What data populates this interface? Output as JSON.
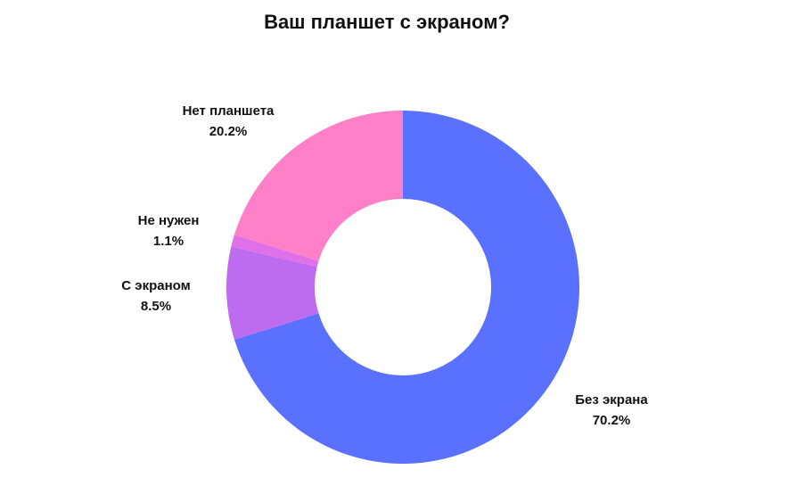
{
  "chart_data": {
    "type": "pie",
    "title": "Ваш планшет с экраном?",
    "series": [
      {
        "name": "Без экрана",
        "value": 70.2,
        "label": "70.2%",
        "color": "#5a70ff"
      },
      {
        "name": "С экраном",
        "value": 8.5,
        "label": "8.5%",
        "color": "#bd6cf0"
      },
      {
        "name": "Не нужен",
        "value": 1.1,
        "label": "1.1%",
        "color": "#e070e8"
      },
      {
        "name": "Нет планшета",
        "value": 20.2,
        "label": "20.2%",
        "color": "#ff80c8"
      }
    ],
    "style": "donut",
    "start_angle": "12 o'clock",
    "direction": "clockwise"
  }
}
